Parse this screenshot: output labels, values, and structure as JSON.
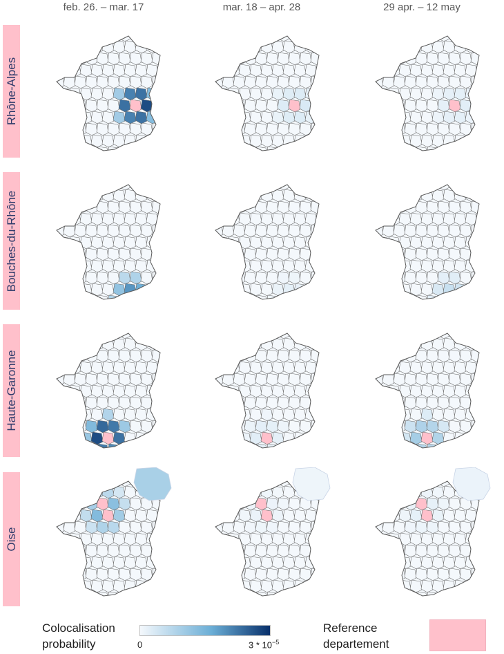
{
  "columns": [
    "feb. 26. – mar. 17",
    "mar. 18 – apr. 28",
    "29 apr. – 12 may"
  ],
  "rows": [
    {
      "label": "Rhône-Alpes",
      "panels": [
        {
          "level": 1.0,
          "inset": false
        },
        {
          "level": 0.12,
          "inset": false
        },
        {
          "level": 0.08,
          "inset": false
        }
      ]
    },
    {
      "label": "Bouches-du-Rhône",
      "panels": [
        {
          "level": 0.65,
          "inset": false
        },
        {
          "level": 0.06,
          "inset": false
        },
        {
          "level": 0.18,
          "inset": false
        }
      ]
    },
    {
      "label": "Haute-Garonne",
      "panels": [
        {
          "level": 1.0,
          "inset": false
        },
        {
          "level": 0.08,
          "inset": false
        },
        {
          "level": 0.35,
          "inset": false
        }
      ]
    },
    {
      "label": "Oise",
      "panels": [
        {
          "level": 0.5,
          "inset": true
        },
        {
          "level": 0.04,
          "inset": true
        },
        {
          "level": 0.06,
          "inset": true
        }
      ]
    }
  ],
  "legend": {
    "colocalisation_line1": "Colocalisation",
    "colocalisation_line2": "probability",
    "min_label": "0",
    "max_label": "3 * 10",
    "max_exponent": "−5",
    "reference_line1": "Reference",
    "reference_line2": "departement"
  },
  "colors": {
    "low": "#f4f8fc",
    "high": "#08306b",
    "reference": "#ffc0cb",
    "border": "#6b6b6b"
  }
}
